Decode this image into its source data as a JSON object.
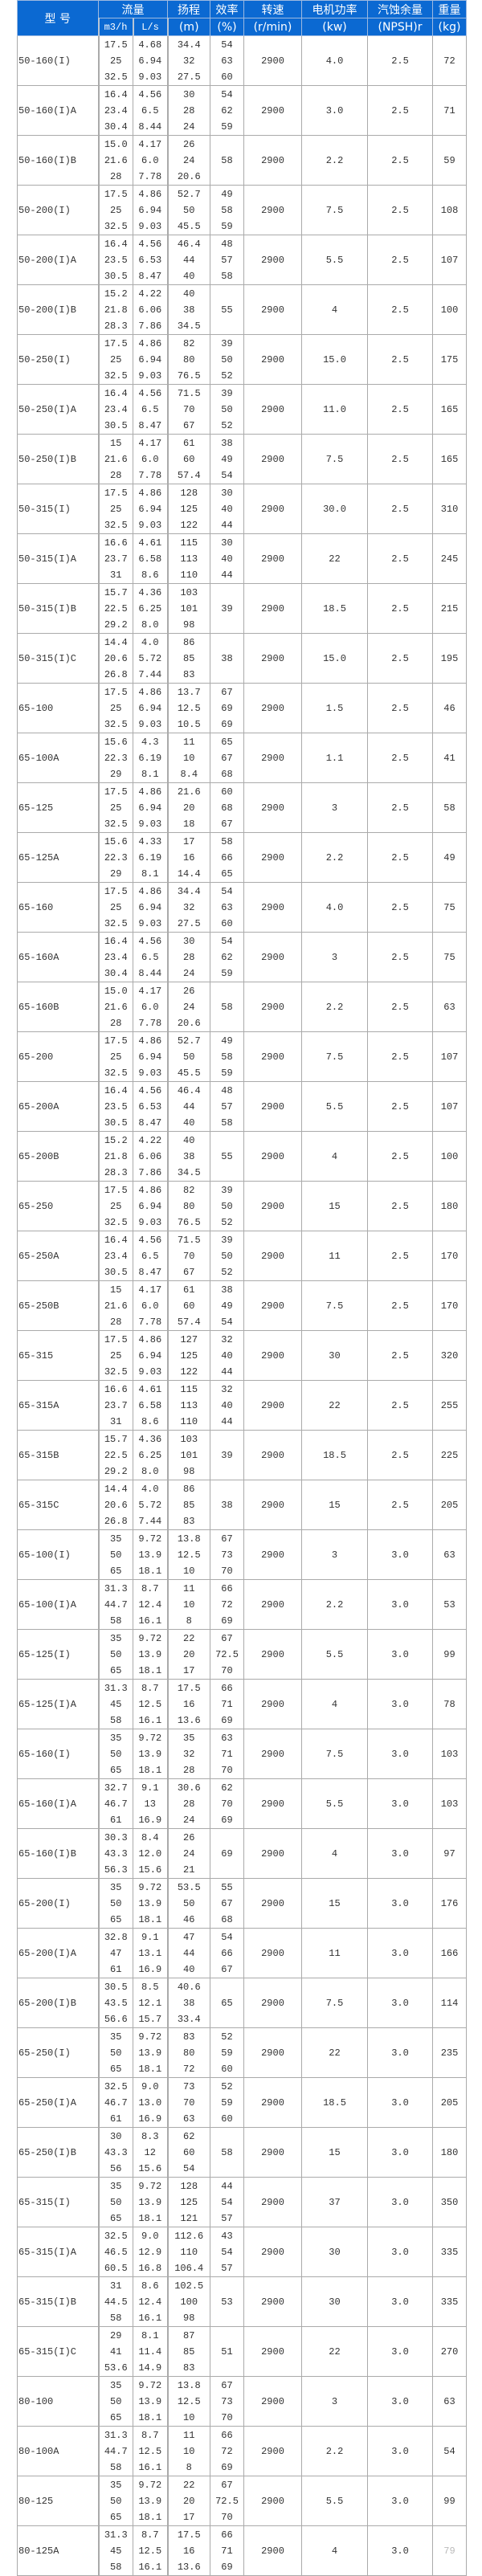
{
  "header": {
    "model": "型 号",
    "flow": "流量",
    "flow_m3h": "m3/h",
    "flow_ls": "L/s",
    "head": "扬程",
    "head_unit": "(m)",
    "eff": "效率",
    "eff_unit": "(%)",
    "speed": "转速",
    "speed_unit": "(r/min)",
    "power": "电机功率",
    "power_unit": "(kw)",
    "npsh": "汽蚀余量",
    "npsh_unit": "(NPSH)r",
    "weight": "重量",
    "weight_unit": "(kg)"
  },
  "colors": {
    "header_bg": "#0b69d2",
    "header_text": "#ffffff"
  },
  "rows": [
    {
      "model": "50-160(I)",
      "q": [
        "17.5",
        "25",
        "32.5"
      ],
      "l": [
        "4.68",
        "6.94",
        "9.03"
      ],
      "h": [
        "34.4",
        "32",
        "27.5"
      ],
      "e": [
        "54",
        "63",
        "60"
      ],
      "n": "2900",
      "p": "4.0",
      "s": "2.5",
      "w": "72"
    },
    {
      "model": "50-160(I)A",
      "q": [
        "16.4",
        "23.4",
        "30.4"
      ],
      "l": [
        "4.56",
        "6.5",
        "8.44"
      ],
      "h": [
        "30",
        "28",
        "24"
      ],
      "e": [
        "54",
        "62",
        "59"
      ],
      "n": "2900",
      "p": "3.0",
      "s": "2.5",
      "w": "71"
    },
    {
      "model": "50-160(I)B",
      "q": [
        "15.0",
        "21.6",
        "28"
      ],
      "l": [
        "4.17",
        "6.0",
        "7.78"
      ],
      "h": [
        "26",
        "24",
        "20.6"
      ],
      "e": [
        "58"
      ],
      "n": "2900",
      "p": "2.2",
      "s": "2.5",
      "w": "59"
    },
    {
      "model": "50-200(I)",
      "q": [
        "17.5",
        "25",
        "32.5"
      ],
      "l": [
        "4.86",
        "6.94",
        "9.03"
      ],
      "h": [
        "52.7",
        "50",
        "45.5"
      ],
      "e": [
        "49",
        "58",
        "59"
      ],
      "n": "2900",
      "p": "7.5",
      "s": "2.5",
      "w": "108"
    },
    {
      "model": "50-200(I)A",
      "q": [
        "16.4",
        "23.5",
        "30.5"
      ],
      "l": [
        "4.56",
        "6.53",
        "8.47"
      ],
      "h": [
        "46.4",
        "44",
        "40"
      ],
      "e": [
        "48",
        "57",
        "58"
      ],
      "n": "2900",
      "p": "5.5",
      "s": "2.5",
      "w": "107"
    },
    {
      "model": "50-200(I)B",
      "q": [
        "15.2",
        "21.8",
        "28.3"
      ],
      "l": [
        "4.22",
        "6.06",
        "7.86"
      ],
      "h": [
        "40",
        "38",
        "34.5"
      ],
      "e": [
        "55"
      ],
      "n": "2900",
      "p": "4",
      "s": "2.5",
      "w": "100"
    },
    {
      "model": "50-250(I)",
      "q": [
        "17.5",
        "25",
        "32.5"
      ],
      "l": [
        "4.86",
        "6.94",
        "9.03"
      ],
      "h": [
        "82",
        "80",
        "76.5"
      ],
      "e": [
        "39",
        "50",
        "52"
      ],
      "n": "2900",
      "p": "15.0",
      "s": "2.5",
      "w": "175"
    },
    {
      "model": "50-250(I)A",
      "q": [
        "16.4",
        "23.4",
        "30.5"
      ],
      "l": [
        "4.56",
        "6.5",
        "8.47"
      ],
      "h": [
        "71.5",
        "70",
        "67"
      ],
      "e": [
        "39",
        "50",
        "52"
      ],
      "n": "2900",
      "p": "11.0",
      "s": "2.5",
      "w": "165"
    },
    {
      "model": "50-250(I)B",
      "q": [
        "15",
        "21.6",
        "28"
      ],
      "l": [
        "4.17",
        "6.0",
        "7.78"
      ],
      "h": [
        "61",
        "60",
        "57.4"
      ],
      "e": [
        "38",
        "49",
        "54"
      ],
      "n": "2900",
      "p": "7.5",
      "s": "2.5",
      "w": "165"
    },
    {
      "model": "50-315(I)",
      "q": [
        "17.5",
        "25",
        "32.5"
      ],
      "l": [
        "4.86",
        "6.94",
        "9.03"
      ],
      "h": [
        "128",
        "125",
        "122"
      ],
      "e": [
        "30",
        "40",
        "44"
      ],
      "n": "2900",
      "p": "30.0",
      "s": "2.5",
      "w": "310"
    },
    {
      "model": "50-315(I)A",
      "q": [
        "16.6",
        "23.7",
        "31"
      ],
      "l": [
        "4.61",
        "6.58",
        "8.6"
      ],
      "h": [
        "115",
        "113",
        "110"
      ],
      "e": [
        "30",
        "40",
        "44"
      ],
      "n": "2900",
      "p": "22",
      "s": "2.5",
      "w": "245"
    },
    {
      "model": "50-315(I)B",
      "q": [
        "15.7",
        "22.5",
        "29.2"
      ],
      "l": [
        "4.36",
        "6.25",
        "8.0"
      ],
      "h": [
        "103",
        "101",
        "98"
      ],
      "e": [
        "39"
      ],
      "n": "2900",
      "p": "18.5",
      "s": "2.5",
      "w": "215"
    },
    {
      "model": "50-315(I)C",
      "q": [
        "14.4",
        "20.6",
        "26.8"
      ],
      "l": [
        "4.0",
        "5.72",
        "7.44"
      ],
      "h": [
        "86",
        "85",
        "83"
      ],
      "e": [
        "38"
      ],
      "n": "2900",
      "p": "15.0",
      "s": "2.5",
      "w": "195"
    },
    {
      "model": "65-100",
      "q": [
        "17.5",
        "25",
        "32.5"
      ],
      "l": [
        "4.86",
        "6.94",
        "9.03"
      ],
      "h": [
        "13.7",
        "12.5",
        "10.5"
      ],
      "e": [
        "67",
        "69",
        "69"
      ],
      "n": "2900",
      "p": "1.5",
      "s": "2.5",
      "w": "46"
    },
    {
      "model": "65-100A",
      "q": [
        "15.6",
        "22.3",
        "29"
      ],
      "l": [
        "4.3",
        "6.19",
        "8.1"
      ],
      "h": [
        "11",
        "10",
        "8.4"
      ],
      "e": [
        "65",
        "67",
        "68"
      ],
      "n": "2900",
      "p": "1.1",
      "s": "2.5",
      "w": "41"
    },
    {
      "model": "65-125",
      "q": [
        "17.5",
        "25",
        "32.5"
      ],
      "l": [
        "4.86",
        "6.94",
        "9.03"
      ],
      "h": [
        "21.6",
        "20",
        "18"
      ],
      "e": [
        "60",
        "68",
        "67"
      ],
      "n": "2900",
      "p": "3",
      "s": "2.5",
      "w": "58"
    },
    {
      "model": "65-125A",
      "q": [
        "15.6",
        "22.3",
        "29"
      ],
      "l": [
        "4.33",
        "6.19",
        "8.1"
      ],
      "h": [
        "17",
        "16",
        "14.4"
      ],
      "e": [
        "58",
        "66",
        "65"
      ],
      "n": "2900",
      "p": "2.2",
      "s": "2.5",
      "w": "49"
    },
    {
      "model": "65-160",
      "q": [
        "17.5",
        "25",
        "32.5"
      ],
      "l": [
        "4.86",
        "6.94",
        "9.03"
      ],
      "h": [
        "34.4",
        "32",
        "27.5"
      ],
      "e": [
        "54",
        "63",
        "60"
      ],
      "n": "2900",
      "p": "4.0",
      "s": "2.5",
      "w": "75"
    },
    {
      "model": "65-160A",
      "q": [
        "16.4",
        "23.4",
        "30.4"
      ],
      "l": [
        "4.56",
        "6.5",
        "8.44"
      ],
      "h": [
        "30",
        "28",
        "24"
      ],
      "e": [
        "54",
        "62",
        "59"
      ],
      "n": "2900",
      "p": "3",
      "s": "2.5",
      "w": "75"
    },
    {
      "model": "65-160B",
      "q": [
        "15.0",
        "21.6",
        "28"
      ],
      "l": [
        "4.17",
        "6.0",
        "7.78"
      ],
      "h": [
        "26",
        "24",
        "20.6"
      ],
      "e": [
        "58"
      ],
      "n": "2900",
      "p": "2.2",
      "s": "2.5",
      "w": "63"
    },
    {
      "model": "65-200",
      "q": [
        "17.5",
        "25",
        "32.5"
      ],
      "l": [
        "4.86",
        "6.94",
        "9.03"
      ],
      "h": [
        "52.7",
        "50",
        "45.5"
      ],
      "e": [
        "49",
        "58",
        "59"
      ],
      "n": "2900",
      "p": "7.5",
      "s": "2.5",
      "w": "107"
    },
    {
      "model": "65-200A",
      "q": [
        "16.4",
        "23.5",
        "30.5"
      ],
      "l": [
        "4.56",
        "6.53",
        "8.47"
      ],
      "h": [
        "46.4",
        "44",
        "40"
      ],
      "e": [
        "48",
        "57",
        "58"
      ],
      "n": "2900",
      "p": "5.5",
      "s": "2.5",
      "w": "107"
    },
    {
      "model": "65-200B",
      "q": [
        "15.2",
        "21.8",
        "28.3"
      ],
      "l": [
        "4.22",
        "6.06",
        "7.86"
      ],
      "h": [
        "40",
        "38",
        "34.5"
      ],
      "e": [
        "55"
      ],
      "n": "2900",
      "p": "4",
      "s": "2.5",
      "w": "100"
    },
    {
      "model": "65-250",
      "q": [
        "17.5",
        "25",
        "32.5"
      ],
      "l": [
        "4.86",
        "6.94",
        "9.03"
      ],
      "h": [
        "82",
        "80",
        "76.5"
      ],
      "e": [
        "39",
        "50",
        "52"
      ],
      "n": "2900",
      "p": "15",
      "s": "2.5",
      "w": "180"
    },
    {
      "model": "65-250A",
      "q": [
        "16.4",
        "23.4",
        "30.5"
      ],
      "l": [
        "4.56",
        "6.5",
        "8.47"
      ],
      "h": [
        "71.5",
        "70",
        "67"
      ],
      "e": [
        "39",
        "50",
        "52"
      ],
      "n": "2900",
      "p": "11",
      "s": "2.5",
      "w": "170"
    },
    {
      "model": "65-250B",
      "q": [
        "15",
        "21.6",
        "28"
      ],
      "l": [
        "4.17",
        "6.0",
        "7.78"
      ],
      "h": [
        "61",
        "60",
        "57.4"
      ],
      "e": [
        "38",
        "49",
        "54"
      ],
      "n": "2900",
      "p": "7.5",
      "s": "2.5",
      "w": "170"
    },
    {
      "model": "65-315",
      "q": [
        "17.5",
        "25",
        "32.5"
      ],
      "l": [
        "4.86",
        "6.94",
        "9.03"
      ],
      "h": [
        "127",
        "125",
        "122"
      ],
      "e": [
        "32",
        "40",
        "44"
      ],
      "n": "2900",
      "p": "30",
      "s": "2.5",
      "w": "320"
    },
    {
      "model": "65-315A",
      "q": [
        "16.6",
        "23.7",
        "31"
      ],
      "l": [
        "4.61",
        "6.58",
        "8.6"
      ],
      "h": [
        "115",
        "113",
        "110"
      ],
      "e": [
        "32",
        "40",
        "44"
      ],
      "n": "2900",
      "p": "22",
      "s": "2.5",
      "w": "255"
    },
    {
      "model": "65-315B",
      "q": [
        "15.7",
        "22.5",
        "29.2"
      ],
      "l": [
        "4.36",
        "6.25",
        "8.0"
      ],
      "h": [
        "103",
        "101",
        "98"
      ],
      "e": [
        "39"
      ],
      "n": "2900",
      "p": "18.5",
      "s": "2.5",
      "w": "225"
    },
    {
      "model": "65-315C",
      "q": [
        "14.4",
        "20.6",
        "26.8"
      ],
      "l": [
        "4.0",
        "5.72",
        "7.44"
      ],
      "h": [
        "86",
        "85",
        "83"
      ],
      "e": [
        "38"
      ],
      "n": "2900",
      "p": "15",
      "s": "2.5",
      "w": "205"
    },
    {
      "model": "65-100(I)",
      "q": [
        "35",
        "50",
        "65"
      ],
      "l": [
        "9.72",
        "13.9",
        "18.1"
      ],
      "h": [
        "13.8",
        "12.5",
        "10"
      ],
      "e": [
        "67",
        "73",
        "70"
      ],
      "n": "2900",
      "p": "3",
      "s": "3.0",
      "w": "63"
    },
    {
      "model": "65-100(I)A",
      "q": [
        "31.3",
        "44.7",
        "58"
      ],
      "l": [
        "8.7",
        "12.4",
        "16.1"
      ],
      "h": [
        "11",
        "10",
        "8"
      ],
      "e": [
        "66",
        "72",
        "69"
      ],
      "n": "2900",
      "p": "2.2",
      "s": "3.0",
      "w": "53"
    },
    {
      "model": "65-125(I)",
      "q": [
        "35",
        "50",
        "65"
      ],
      "l": [
        "9.72",
        "13.9",
        "18.1"
      ],
      "h": [
        "22",
        "20",
        "17"
      ],
      "e": [
        "67",
        "72.5",
        "70"
      ],
      "n": "2900",
      "p": "5.5",
      "s": "3.0",
      "w": "99"
    },
    {
      "model": "65-125(I)A",
      "q": [
        "31.3",
        "45",
        "58"
      ],
      "l": [
        "8.7",
        "12.5",
        "16.1"
      ],
      "h": [
        "17.5",
        "16",
        "13.6"
      ],
      "e": [
        "66",
        "71",
        "69"
      ],
      "n": "2900",
      "p": "4",
      "s": "3.0",
      "w": "78"
    },
    {
      "model": "65-160(I)",
      "q": [
        "35",
        "50",
        "65"
      ],
      "l": [
        "9.72",
        "13.9",
        "18.1"
      ],
      "h": [
        "35",
        "32",
        "28"
      ],
      "e": [
        "63",
        "71",
        "70"
      ],
      "n": "2900",
      "p": "7.5",
      "s": "3.0",
      "w": "103"
    },
    {
      "model": "65-160(I)A",
      "q": [
        "32.7",
        "46.7",
        "61"
      ],
      "l": [
        "9.1",
        "13",
        "16.9"
      ],
      "h": [
        "30.6",
        "28",
        "24"
      ],
      "e": [
        "62",
        "70",
        "69"
      ],
      "n": "2900",
      "p": "5.5",
      "s": "3.0",
      "w": "103"
    },
    {
      "model": "65-160(I)B",
      "q": [
        "30.3",
        "43.3",
        "56.3"
      ],
      "l": [
        "8.4",
        "12.0",
        "15.6"
      ],
      "h": [
        "26",
        "24",
        "21"
      ],
      "e": [
        "69"
      ],
      "n": "2900",
      "p": "4",
      "s": "3.0",
      "w": "97"
    },
    {
      "model": "65-200(I)",
      "q": [
        "35",
        "50",
        "65"
      ],
      "l": [
        "9.72",
        "13.9",
        "18.1"
      ],
      "h": [
        "53.5",
        "50",
        "46"
      ],
      "e": [
        "55",
        "67",
        "68"
      ],
      "n": "2900",
      "p": "15",
      "s": "3.0",
      "w": "176"
    },
    {
      "model": "65-200(I)A",
      "q": [
        "32.8",
        "47",
        "61"
      ],
      "l": [
        "9.1",
        "13.1",
        "16.9"
      ],
      "h": [
        "47",
        "44",
        "40"
      ],
      "e": [
        "54",
        "66",
        "67"
      ],
      "n": "2900",
      "p": "11",
      "s": "3.0",
      "w": "166"
    },
    {
      "model": "65-200(I)B",
      "q": [
        "30.5",
        "43.5",
        "56.6"
      ],
      "l": [
        "8.5",
        "12.1",
        "15.7"
      ],
      "h": [
        "40.6",
        "38",
        "33.4"
      ],
      "e": [
        "65"
      ],
      "n": "2900",
      "p": "7.5",
      "s": "3.0",
      "w": "114"
    },
    {
      "model": "65-250(I)",
      "q": [
        "35",
        "50",
        "65"
      ],
      "l": [
        "9.72",
        "13.9",
        "18.1"
      ],
      "h": [
        "83",
        "80",
        "72"
      ],
      "e": [
        "52",
        "59",
        "60"
      ],
      "n": "2900",
      "p": "22",
      "s": "3.0",
      "w": "235"
    },
    {
      "model": "65-250(I)A",
      "q": [
        "32.5",
        "46.7",
        "61"
      ],
      "l": [
        "9.0",
        "13.0",
        "16.9"
      ],
      "h": [
        "73",
        "70",
        "63"
      ],
      "e": [
        "52",
        "59",
        "60"
      ],
      "n": "2900",
      "p": "18.5",
      "s": "3.0",
      "w": "205"
    },
    {
      "model": "65-250(I)B",
      "q": [
        "30",
        "43.3",
        "56"
      ],
      "l": [
        "8.3",
        "12",
        "15.6"
      ],
      "h": [
        "62",
        "60",
        "54"
      ],
      "e": [
        "58"
      ],
      "n": "2900",
      "p": "15",
      "s": "3.0",
      "w": "180"
    },
    {
      "model": "65-315(I)",
      "q": [
        "35",
        "50",
        "65"
      ],
      "l": [
        "9.72",
        "13.9",
        "18.1"
      ],
      "h": [
        "128",
        "125",
        "121"
      ],
      "e": [
        "44",
        "54",
        "57"
      ],
      "n": "2900",
      "p": "37",
      "s": "3.0",
      "w": "350"
    },
    {
      "model": "65-315(I)A",
      "q": [
        "32.5",
        "46.5",
        "60.5"
      ],
      "l": [
        "9.0",
        "12.9",
        "16.8"
      ],
      "h": [
        "112.6",
        "110",
        "106.4"
      ],
      "e": [
        "43",
        "54",
        "57"
      ],
      "n": "2900",
      "p": "30",
      "s": "3.0",
      "w": "335"
    },
    {
      "model": "65-315(I)B",
      "q": [
        "31",
        "44.5",
        "58"
      ],
      "l": [
        "8.6",
        "12.4",
        "16.1"
      ],
      "h": [
        "102.5",
        "100",
        "98"
      ],
      "e": [
        "53"
      ],
      "n": "2900",
      "p": "30",
      "s": "3.0",
      "w": "335"
    },
    {
      "model": "65-315(I)C",
      "q": [
        "29",
        "41",
        "53.6"
      ],
      "l": [
        "8.1",
        "11.4",
        "14.9"
      ],
      "h": [
        "87",
        "85",
        "83"
      ],
      "e": [
        "51"
      ],
      "n": "2900",
      "p": "22",
      "s": "3.0",
      "w": "270"
    },
    {
      "model": "80-100",
      "q": [
        "35",
        "50",
        "65"
      ],
      "l": [
        "9.72",
        "13.9",
        "18.1"
      ],
      "h": [
        "13.8",
        "12.5",
        "10"
      ],
      "e": [
        "67",
        "73",
        "70"
      ],
      "n": "2900",
      "p": "3",
      "s": "3.0",
      "w": "63"
    },
    {
      "model": "80-100A",
      "q": [
        "31.3",
        "44.7",
        "58"
      ],
      "l": [
        "8.7",
        "12.5",
        "16.1"
      ],
      "h": [
        "11",
        "10",
        "8"
      ],
      "e": [
        "66",
        "72",
        "69"
      ],
      "n": "2900",
      "p": "2.2",
      "s": "3.0",
      "w": "54"
    },
    {
      "model": "80-125",
      "q": [
        "35",
        "50",
        "65"
      ],
      "l": [
        "9.72",
        "13.9",
        "18.1"
      ],
      "h": [
        "22",
        "20",
        "17"
      ],
      "e": [
        "67",
        "72.5",
        "70"
      ],
      "n": "2900",
      "p": "5.5",
      "s": "3.0",
      "w": "99"
    },
    {
      "model": "80-125A",
      "q": [
        "31.3",
        "45",
        "58"
      ],
      "l": [
        "8.7",
        "12.5",
        "16.1"
      ],
      "h": [
        "17.5",
        "16",
        "13.6"
      ],
      "e": [
        "66",
        "71",
        "69"
      ],
      "n": "2900",
      "p": "4",
      "s": "3.0",
      "w": "79"
    }
  ]
}
